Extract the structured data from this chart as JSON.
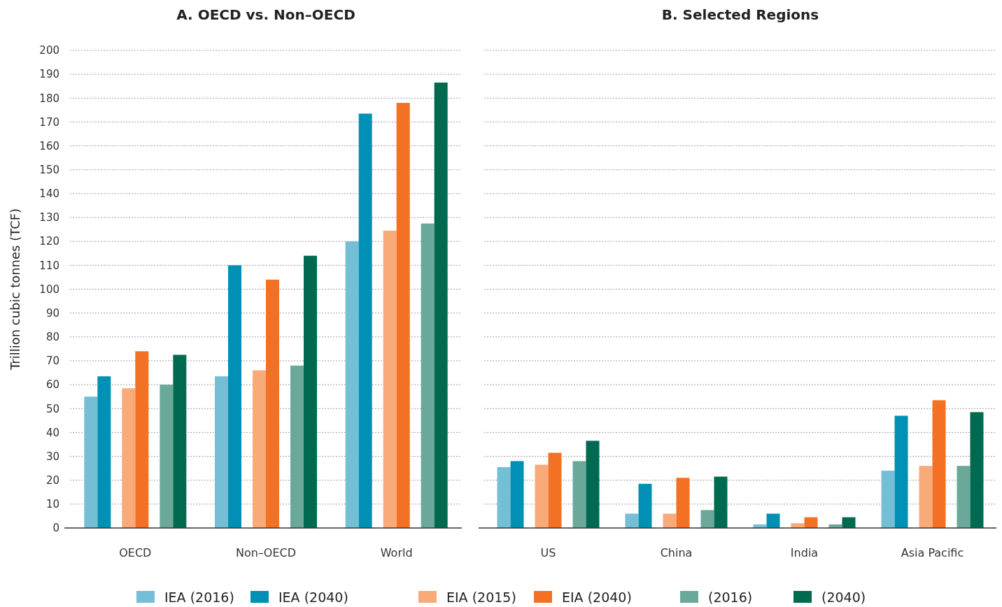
{
  "chart_data": [
    {
      "type": "bar",
      "title": "A. OECD vs. Non–OECD",
      "ylabel": "Trillion cubic tonnes (TCF)",
      "categories": [
        "OECD",
        "Non–OECD",
        "World"
      ],
      "series": [
        {
          "name": "IEA (2016)",
          "color": "#74bfd6",
          "values": [
            55,
            63.5,
            120
          ]
        },
        {
          "name": "IEA (2040)",
          "color": "#0090b5",
          "values": [
            63.5,
            110,
            173.5
          ]
        },
        {
          "name": "EIA (2015)",
          "color": "#f8ab78",
          "values": [
            58.5,
            66,
            124.5
          ]
        },
        {
          "name": "EIA (2040)",
          "color": "#f37125",
          "values": [
            74,
            104,
            178
          ]
        },
        {
          "name": "(2016)",
          "color": "#6aa99a",
          "values": [
            60,
            68,
            127.5
          ]
        },
        {
          "name": "(2040)",
          "color": "#006a51",
          "values": [
            72.5,
            114,
            186.5
          ]
        }
      ],
      "ylim": [
        0,
        200
      ],
      "yticks": [
        0,
        10,
        20,
        30,
        40,
        50,
        60,
        70,
        80,
        90,
        100,
        110,
        120,
        130,
        140,
        150,
        160,
        170,
        180,
        190,
        200
      ],
      "grid": "y",
      "legend": "bottom"
    },
    {
      "type": "bar",
      "title": "B. Selected Regions",
      "categories": [
        "US",
        "China",
        "India",
        "Asia Pacific"
      ],
      "series": [
        {
          "color": "#74bfd6",
          "values": [
            25.5,
            6,
            1.5,
            24
          ]
        },
        {
          "color": "#0090b5",
          "values": [
            28,
            18.5,
            6,
            47
          ]
        },
        {
          "color": "#f8ab78",
          "values": [
            26.5,
            6,
            2,
            26
          ]
        },
        {
          "color": "#f37125",
          "values": [
            31.5,
            21,
            4.5,
            53.5
          ]
        },
        {
          "color": "#6aa99a",
          "values": [
            28,
            7.5,
            1.5,
            26
          ]
        },
        {
          "color": "#006a51",
          "values": [
            36.5,
            21.5,
            4.5,
            48.5
          ]
        }
      ],
      "ylim": [
        0,
        200
      ],
      "yticks": [
        0,
        10,
        20,
        30,
        40,
        50,
        60,
        70,
        80,
        90,
        100,
        110,
        120,
        130,
        140,
        150,
        160,
        170,
        180,
        190,
        200
      ],
      "grid": "y",
      "tick_labels": "x"
    }
  ]
}
